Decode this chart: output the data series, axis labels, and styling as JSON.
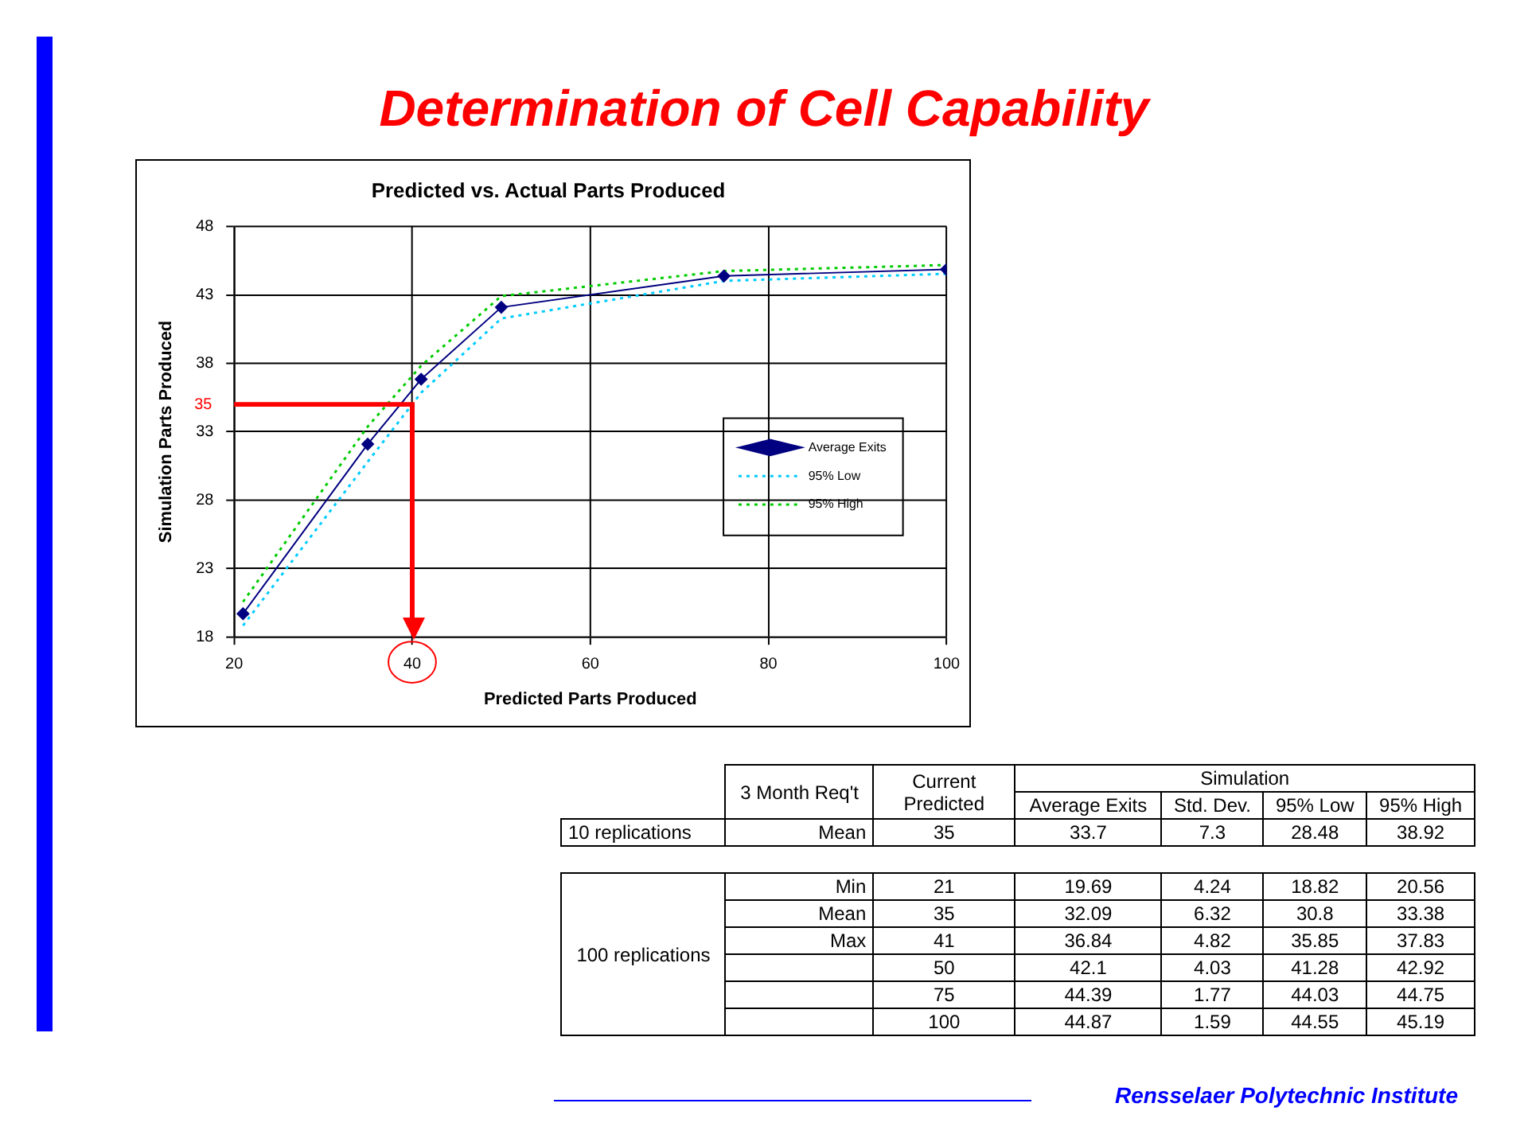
{
  "chart_data": [
    {
      "type": "line",
      "title": "Determination of Cell Capability",
      "subtitle": "Predicted vs. Actual Parts Produced",
      "xlabel": "Predicted Parts Produced",
      "ylabel": "Simulation Parts Produced",
      "x": [
        21,
        35,
        41,
        50,
        75,
        100
      ],
      "series": [
        {
          "name": "Average Exits",
          "color": "#000080",
          "marker": "diamond",
          "line_style": "solid",
          "values": [
            19.69,
            32.09,
            36.84,
            42.1,
            44.39,
            44.87
          ]
        },
        {
          "name": "95% Low",
          "color": "#00ccff",
          "marker": "none",
          "line_style": "dotted",
          "values": [
            18.82,
            30.8,
            35.85,
            41.28,
            44.03,
            44.55
          ]
        },
        {
          "name": "95% High",
          "color": "#00cc00",
          "marker": "none",
          "line_style": "dotted",
          "values": [
            20.56,
            33.38,
            37.83,
            42.92,
            44.75,
            45.19
          ]
        }
      ],
      "xlim": [
        20,
        100
      ],
      "xticks": [
        20,
        40,
        60,
        80,
        100
      ],
      "ylim": [
        18,
        48
      ],
      "yticks": [
        18,
        23,
        28,
        33,
        38,
        43,
        48
      ],
      "grid": true,
      "legend": "right",
      "ref_lines": [
        {
          "axis": "y",
          "value": 35,
          "label": "35",
          "color": "#ff0000"
        },
        {
          "axis": "x",
          "value": 40,
          "color": "#ff0000"
        }
      ],
      "annotations": [
        "Rensselaer Polytechnic Institute"
      ]
    },
    {
      "type": "other",
      "annotations": [
        "3 Month Req't",
        "Current Predicted",
        "Simulation",
        "Average Exits",
        "Std. Dev.",
        "95% Low",
        "95% High",
        "10 replications",
        "Mean",
        "35",
        "33.7",
        "7.3",
        "28.48",
        "38.92",
        "100 replications",
        "Min",
        "21",
        "19.69",
        "4.24",
        "18.82",
        "20.56",
        "Mean",
        "35",
        "32.09",
        "6.32",
        "30.8",
        "33.38",
        "Max",
        "41",
        "36.84",
        "4.82",
        "35.85",
        "37.83",
        "50",
        "42.1",
        "4.03",
        "41.28",
        "42.92",
        "75",
        "44.39",
        "1.77",
        "44.03",
        "44.75",
        "100",
        "44.87",
        "1.59",
        "44.55",
        "45.19"
      ]
    }
  ]
}
